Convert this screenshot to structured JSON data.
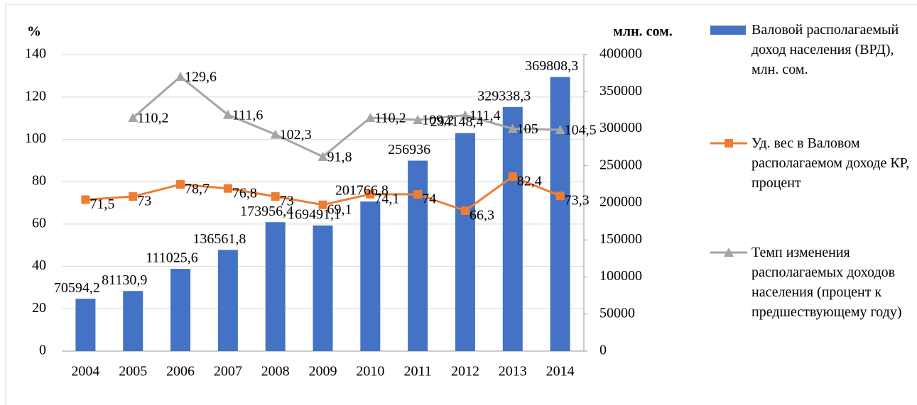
{
  "chart_data": {
    "type": "bar",
    "y_label": "%",
    "y2_label": "млн. сом.",
    "categories": [
      "2004",
      "2005",
      "2006",
      "2007",
      "2008",
      "2009",
      "2010",
      "2011",
      "2012",
      "2013",
      "2014"
    ],
    "ylim": [
      0,
      140
    ],
    "yticks": [
      0,
      20,
      40,
      60,
      80,
      100,
      120,
      140
    ],
    "y2lim": [
      0,
      400000
    ],
    "y2ticks": [
      0,
      50000,
      100000,
      150000,
      200000,
      250000,
      300000,
      350000,
      400000
    ],
    "legend": "right",
    "series": [
      {
        "name": "Валовой располагаемый доход населения (ВРД), млн. сом.",
        "type": "bar",
        "axis": "y2",
        "color": "#4472c4",
        "values": [
          70594.2,
          81130.9,
          111025.6,
          136561.8,
          173956.4,
          169491.1,
          201766.8,
          256936,
          294148.4,
          329338.3,
          369808.3
        ],
        "value_labels": [
          "70594,2",
          "81130,9",
          "111025,6",
          "136561,8",
          "173956,4",
          "169491,1",
          "201766,8",
          "256936",
          "294148,4",
          "329338,3",
          "369808,3"
        ]
      },
      {
        "name": "Уд. вес в Валовом располагаемом доходе КР, процент",
        "type": "line",
        "marker": "square",
        "color": "#ed7d31",
        "values": [
          71.5,
          73,
          78.7,
          76.8,
          73,
          69.1,
          74.1,
          74,
          66.3,
          82.4,
          73.3
        ],
        "value_labels": [
          "71,5",
          "73",
          "78,7",
          "76,8",
          "73",
          "69,1",
          "74,1",
          "74",
          "66,3",
          "82,4",
          "73,3"
        ]
      },
      {
        "name": "Темп изменения располагаемых доходов населения (процент к предшествующему году)",
        "type": "line",
        "marker": "triangle",
        "color": "#a5a5a5",
        "values": [
          null,
          110.2,
          129.6,
          111.6,
          102.3,
          91.8,
          110.2,
          109.2,
          111.4,
          105,
          104.5
        ],
        "value_labels": [
          null,
          "110,2",
          "129,6",
          "111,6",
          "102,3",
          "91,8",
          "110,2",
          "109,2",
          "111,4",
          "105",
          "104,5"
        ]
      }
    ]
  }
}
